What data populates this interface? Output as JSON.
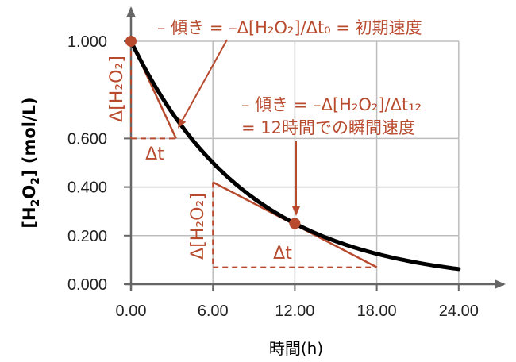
{
  "chart_data": {
    "type": "line",
    "xlabel": "時間(h)",
    "ylabel": "[H2O2] (mol/L)",
    "xlim": [
      0,
      27
    ],
    "ylim": [
      0,
      1.0
    ],
    "x_ticks": [
      "0.00",
      "6.00",
      "12.00",
      "18.00",
      "24.00"
    ],
    "y_ticks": [
      "0.000",
      "0.200",
      "0.400",
      "0.600",
      "1.000"
    ],
    "grid": true,
    "series": [
      {
        "x": [
          0,
          3,
          6,
          9,
          12,
          15,
          18,
          21,
          24
        ],
        "y": [
          1.0,
          0.707,
          0.5,
          0.354,
          0.25,
          0.177,
          0.125,
          0.088,
          0.0625
        ]
      }
    ],
    "highlighted_points": [
      {
        "x": 0,
        "y": 1.0
      },
      {
        "x": 12,
        "y": 0.25
      }
    ],
    "tangent_lines": [
      {
        "x1": 0,
        "y1": 1.0,
        "x2": 3.3,
        "y2": 0.6
      },
      {
        "x1": 6,
        "y1": 0.42,
        "x2": 18,
        "y2": 0.07
      }
    ],
    "annotations": {
      "initial_rate": "– 傾き = –Δ[H₂O₂]/Δt₀ = 初期速度",
      "instant_rate_line1": "– 傾き = –Δ[H₂O₂]/Δt₁₂",
      "instant_rate_line2": "= 12時間での瞬間速度",
      "delta_conc_1": "Δ[H₂O₂]",
      "delta_t_1": "Δt",
      "delta_conc_2": "Δ[H₂O₂]",
      "delta_t_2": "Δt"
    },
    "colors": {
      "curve": "#000000",
      "accent": "#b84a2e",
      "grid": "#bdbdbd",
      "axis": "#666666"
    }
  }
}
